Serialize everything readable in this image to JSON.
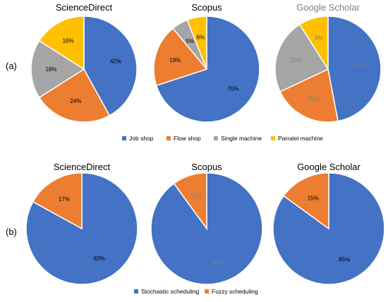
{
  "panels": [
    {
      "label": "(a)",
      "legend": [
        {
          "name": "Job shop",
          "color": "#4472c4"
        },
        {
          "name": "Flow shop",
          "color": "#ed7d31"
        },
        {
          "name": "Single machine",
          "color": "#a5a5a5"
        },
        {
          "name": "Parralel machine",
          "color": "#ffc000"
        }
      ]
    },
    {
      "label": "(b)",
      "legend": [
        {
          "name": "Stochastic scheduling",
          "color": "#4472c4"
        },
        {
          "name": "Fuzzy scheduling",
          "color": "#ed7d31"
        }
      ]
    }
  ],
  "chart_data": [
    {
      "type": "pie",
      "panel": "(a)",
      "title": "ScienceDirect",
      "title_color": "#000000",
      "labels": [
        "Job shop",
        "Flow shop",
        "Single machine",
        "Parralel machine"
      ],
      "values": [
        42,
        24,
        18,
        16
      ],
      "value_labels": [
        "42%",
        "24%",
        "18%",
        "16%"
      ],
      "colors": [
        "#4472c4",
        "#ed7d31",
        "#a5a5a5",
        "#ffc000"
      ]
    },
    {
      "type": "pie",
      "panel": "(a)",
      "title": "Scopus",
      "title_color": "#000000",
      "labels": [
        "Job shop",
        "Flow shop",
        "Single machine",
        "Parralel machine"
      ],
      "values": [
        70,
        19,
        5,
        6
      ],
      "value_labels": [
        "70%",
        "19%",
        "5%",
        "6%"
      ],
      "colors": [
        "#4472c4",
        "#ed7d31",
        "#a5a5a5",
        "#ffc000"
      ]
    },
    {
      "type": "pie",
      "panel": "(a)",
      "title": "Google Scholar",
      "title_color": "#7f7f7f",
      "labels": [
        "Job shop",
        "Flow shop",
        "Single machine",
        "Parralel machine"
      ],
      "values": [
        47,
        21,
        23,
        9
      ],
      "value_labels": [
        "47%",
        "21%",
        "23%",
        "9%"
      ],
      "colors": [
        "#4472c4",
        "#ed7d31",
        "#a5a5a5",
        "#ffc000"
      ],
      "label_color": "#7f7f7f"
    },
    {
      "type": "pie",
      "panel": "(b)",
      "title": "ScienceDirect",
      "title_color": "#000000",
      "labels": [
        "Stochastic scheduling",
        "Fuzzy scheduling"
      ],
      "values": [
        83,
        17
      ],
      "value_labels": [
        "83%",
        "17%"
      ],
      "colors": [
        "#4472c4",
        "#ed7d31"
      ]
    },
    {
      "type": "pie",
      "panel": "(b)",
      "title": "Scopus",
      "title_color": "#000000",
      "labels": [
        "Stochastic scheduling",
        "Fuzzy scheduling"
      ],
      "values": [
        90,
        10
      ],
      "value_labels": [
        "90%",
        "10%"
      ],
      "colors": [
        "#4472c4",
        "#ed7d31"
      ],
      "label_color": "#7f7f7f"
    },
    {
      "type": "pie",
      "panel": "(b)",
      "title": "Google Scholar",
      "title_color": "#000000",
      "labels": [
        "Stochastic scheduling",
        "Fuzzy scheduling"
      ],
      "values": [
        85,
        15
      ],
      "value_labels": [
        "85%",
        "15%"
      ],
      "colors": [
        "#4472c4",
        "#ed7d31"
      ]
    }
  ]
}
